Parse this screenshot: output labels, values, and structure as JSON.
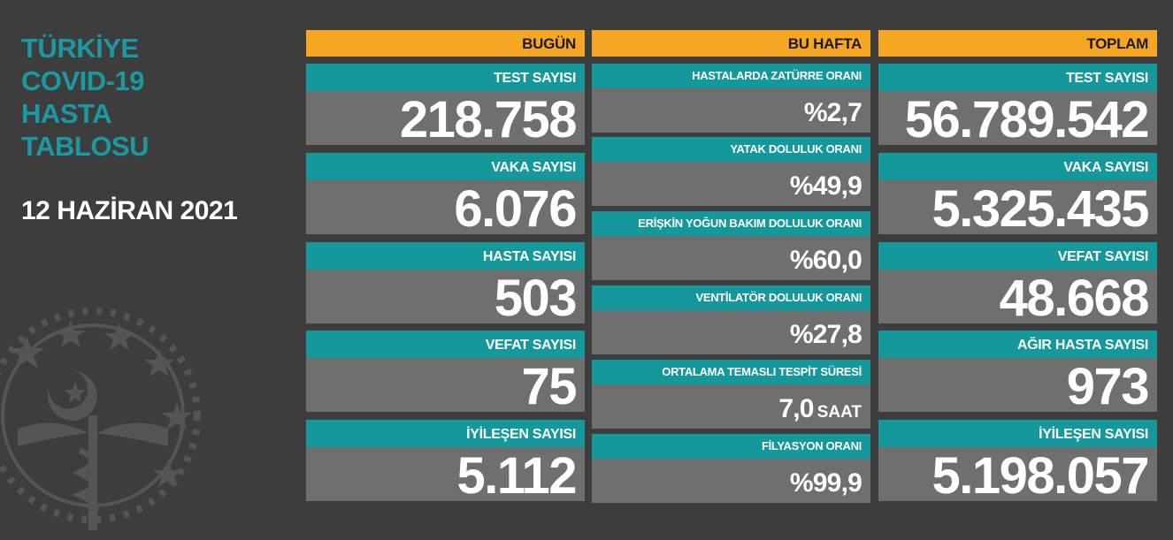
{
  "header": {
    "title_lines": [
      "TÜRKİYE",
      "COVID-19",
      "HASTA",
      "TABLOSU"
    ],
    "date": "12 HAZİRAN 2021"
  },
  "colors": {
    "background": "#3d3d3d",
    "title": "#1a9aa0",
    "column_header": "#f5a623",
    "label_bar": "#14989c",
    "value_box": "#6f6f6f"
  },
  "columns": {
    "today": {
      "header": "BUGÜN",
      "items": [
        {
          "label": "TEST SAYISI",
          "value": "218.758"
        },
        {
          "label": "VAKA SAYISI",
          "value": "6.076"
        },
        {
          "label": "HASTA SAYISI",
          "value": "503"
        },
        {
          "label": "VEFAT SAYISI",
          "value": "75"
        },
        {
          "label": "İYİLEŞEN SAYISI",
          "value": "5.112"
        }
      ]
    },
    "week": {
      "header": "BU HAFTA",
      "items": [
        {
          "label": "HASTALARDA ZATÜRRE ORANI",
          "value": "%2,7",
          "unit": ""
        },
        {
          "label": "YATAK DOLULUK ORANI",
          "value": "%49,9",
          "unit": ""
        },
        {
          "label": "ERİŞKİN YOĞUN BAKIM DOLULUK ORANI",
          "value": "%60,0",
          "unit": ""
        },
        {
          "label": "VENTİLATÖR DOLULUK ORANI",
          "value": "%27,8",
          "unit": ""
        },
        {
          "label": "ORTALAMA TEMASLI TESPİT SÜRESİ",
          "value": "7,0",
          "unit": "SAAT"
        },
        {
          "label": "FİLYASYON ORANI",
          "value": "%99,9",
          "unit": ""
        }
      ]
    },
    "total": {
      "header": "TOPLAM",
      "items": [
        {
          "label": "TEST SAYISI",
          "value": "56.789.542"
        },
        {
          "label": "VAKA SAYISI",
          "value": "5.325.435"
        },
        {
          "label": "VEFAT SAYISI",
          "value": "48.668"
        },
        {
          "label": "AĞIR HASTA SAYISI",
          "value": "973"
        },
        {
          "label": "İYİLEŞEN SAYISI",
          "value": "5.198.057"
        }
      ]
    }
  },
  "icons": {
    "emblem": "ministry-of-health-emblem-icon"
  }
}
